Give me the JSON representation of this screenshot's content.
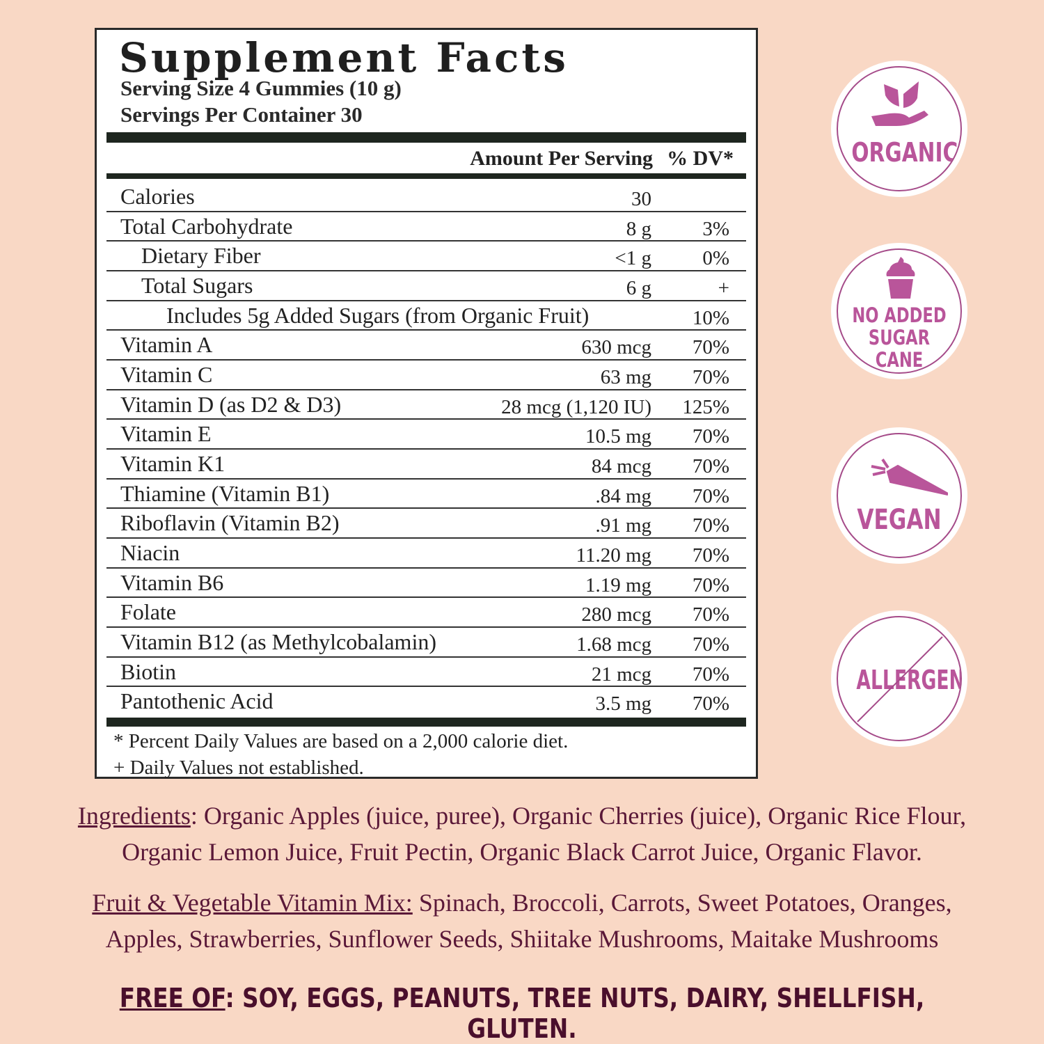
{
  "facts": {
    "title": "Supplement Facts",
    "serving_size": "Serving Size 4 Gummies (10 g)",
    "servings_per_container": "Servings Per Container 30",
    "amount_header": "Amount Per Serving",
    "dv_header": "% DV*",
    "rows": [
      {
        "name": "Calories",
        "amount": "30",
        "dv": ""
      },
      {
        "name": "Total Carbohydrate",
        "amount": "8 g",
        "dv": "3%"
      },
      {
        "name": "Dietary Fiber",
        "amount": "<1 g",
        "dv": "0%"
      },
      {
        "name": "Total Sugars",
        "amount": "6 g",
        "dv": "+"
      },
      {
        "name": "Includes 5g Added Sugars (from Organic Fruit)",
        "amount": "",
        "dv": "10%"
      },
      {
        "name": "Vitamin A",
        "amount": "630 mcg",
        "dv": "70%"
      },
      {
        "name": "Vitamin C",
        "amount": "63 mg",
        "dv": "70%"
      },
      {
        "name": "Vitamin D (as D2 & D3)",
        "amount": "28 mcg (1,120 IU)",
        "dv": "125%"
      },
      {
        "name": "Vitamin E",
        "amount": "10.5 mg",
        "dv": "70%"
      },
      {
        "name": "Vitamin K1",
        "amount": "84 mcg",
        "dv": "70%"
      },
      {
        "name": "Thiamine (Vitamin B1)",
        "amount": ".84 mg",
        "dv": "70%"
      },
      {
        "name": "Riboflavin (Vitamin B2)",
        "amount": ".91 mg",
        "dv": "70%"
      },
      {
        "name": "Niacin",
        "amount": "11.20 mg",
        "dv": "70%"
      },
      {
        "name": "Vitamin B6",
        "amount": "1.19 mg",
        "dv": "70%"
      },
      {
        "name": "Folate",
        "amount": "280 mcg",
        "dv": "70%"
      },
      {
        "name": "Vitamin B12 (as Methylcobalamin)",
        "amount": "1.68 mcg",
        "dv": "70%"
      },
      {
        "name": "Biotin",
        "amount": "21 mcg",
        "dv": "70%"
      },
      {
        "name": "Pantothenic Acid",
        "amount": "3.5 mg",
        "dv": "70%"
      }
    ],
    "footnote_1": "* Percent Daily Values are based on a 2,000 calorie diet.",
    "footnote_2": "+ Daily Values not established."
  },
  "badges": [
    {
      "label": "ORGANIC",
      "icon": "hand-leaves-icon"
    },
    {
      "label_1": "NO ADDED",
      "label_2": "SUGAR CANE",
      "icon": "cupcake-icon"
    },
    {
      "label": "VEGAN",
      "icon": "carrot-icon"
    },
    {
      "label": "ALLERGENS",
      "icon": "strike-through-icon"
    }
  ],
  "ingredients": {
    "label": "Ingredients",
    "text_1": ": Organic Apples (juice, puree), Organic Cherries (juice),  Organic Rice Flour,",
    "text_2": "Organic Lemon Juice, Fruit Pectin, Organic Black Carrot Juice, Organic Flavor."
  },
  "vitamin_mix": {
    "label": "Fruit & Vegetable Vitamin Mix:",
    "text_1": " Spinach, Broccoli, Carrots, Sweet Potatoes, Oranges,",
    "text_2": "Apples, Strawberries, Sunflower Seeds, Shiitake Mushrooms, Maitake Mushrooms"
  },
  "free_of": {
    "label": "FREE OF",
    "text": ": SOY, EGGS, PEANUTS, TREE NUTS, DAIRY, SHELLFISH, GLUTEN."
  },
  "colors": {
    "background": "#f9d8c5",
    "badge": "#b9559a",
    "text": "#5a1838"
  }
}
